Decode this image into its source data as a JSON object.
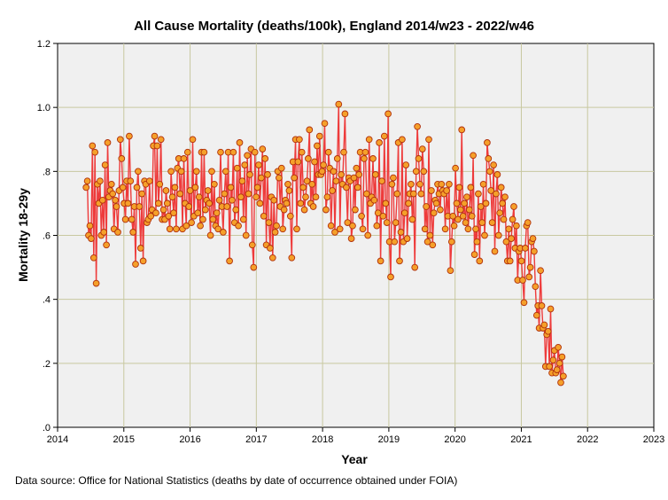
{
  "chart_data": {
    "type": "line",
    "title": "All Cause Mortality (deaths/100k), England 2014/w23 - 2022/w46",
    "xlabel": "Year",
    "ylabel": "Mortality 18-29y",
    "xlim": [
      2014,
      2023
    ],
    "ylim": [
      0.0,
      1.2
    ],
    "x_ticks": [
      2014,
      2015,
      2016,
      2017,
      2018,
      2019,
      2020,
      2021,
      2022,
      2023
    ],
    "y_ticks": [
      0.0,
      0.2,
      0.4,
      0.6,
      0.8,
      1.0,
      1.2
    ],
    "y_tick_labels": [
      ".0",
      ".2",
      ".4",
      ".6",
      ".8",
      "1.0",
      "1.2"
    ],
    "grid": true,
    "series": [
      {
        "name": "Mortality 18-29y",
        "line_color": "#ee3b3b",
        "marker_fill": "#f5a02a",
        "marker_edge": "#b0300c",
        "x_start_year": 2014.43,
        "x_step_years": 0.01916,
        "values": [
          0.75,
          0.77,
          0.6,
          0.63,
          0.59,
          0.88,
          0.53,
          0.86,
          0.45,
          0.76,
          0.7,
          0.77,
          0.6,
          0.71,
          0.61,
          0.82,
          0.57,
          0.89,
          0.72,
          0.74,
          0.76,
          0.73,
          0.62,
          0.71,
          0.69,
          0.61,
          0.74,
          0.9,
          0.84,
          0.75,
          0.7,
          0.65,
          0.77,
          0.7,
          0.91,
          0.77,
          0.65,
          0.61,
          0.69,
          0.51,
          0.75,
          0.8,
          0.69,
          0.56,
          0.73,
          0.52,
          0.77,
          0.76,
          0.64,
          0.65,
          0.77,
          0.66,
          0.68,
          0.88,
          0.91,
          0.67,
          0.88,
          0.7,
          0.76,
          0.9,
          0.65,
          0.68,
          0.65,
          0.74,
          0.7,
          0.66,
          0.62,
          0.8,
          0.72,
          0.67,
          0.75,
          0.62,
          0.81,
          0.84,
          0.73,
          0.8,
          0.62,
          0.84,
          0.7,
          0.63,
          0.86,
          0.69,
          0.74,
          0.64,
          0.9,
          0.66,
          0.75,
          0.8,
          0.67,
          0.72,
          0.63,
          0.86,
          0.65,
          0.86,
          0.68,
          0.71,
          0.74,
          0.7,
          0.6,
          0.8,
          0.65,
          0.76,
          0.63,
          0.67,
          0.62,
          0.71,
          0.86,
          0.69,
          0.61,
          0.73,
          0.8,
          0.69,
          0.86,
          0.52,
          0.75,
          0.71,
          0.86,
          0.64,
          0.68,
          0.81,
          0.63,
          0.89,
          0.72,
          0.77,
          0.65,
          0.82,
          0.6,
          0.85,
          0.73,
          0.79,
          0.87,
          0.57,
          0.5,
          0.86,
          0.72,
          0.75,
          0.82,
          0.7,
          0.78,
          0.87,
          0.66,
          0.84,
          0.57,
          0.79,
          0.64,
          0.56,
          0.72,
          0.53,
          0.71,
          0.61,
          0.63,
          0.8,
          0.78,
          0.69,
          0.81,
          0.62,
          0.68,
          0.71,
          0.7,
          0.76,
          0.74,
          0.66,
          0.53,
          0.83,
          0.78,
          0.9,
          0.62,
          0.83,
          0.9,
          0.7,
          0.86,
          0.75,
          0.68,
          0.72,
          0.77,
          0.84,
          0.93,
          0.7,
          0.76,
          0.69,
          0.83,
          0.72,
          0.88,
          0.79,
          0.91,
          0.79,
          0.8,
          0.82,
          0.95,
          0.68,
          0.72,
          0.86,
          0.81,
          0.63,
          0.74,
          0.8,
          0.61,
          0.77,
          0.84,
          1.01,
          0.62,
          0.79,
          0.76,
          0.86,
          0.98,
          0.75,
          0.64,
          0.78,
          0.77,
          0.59,
          0.63,
          0.78,
          0.68,
          0.81,
          0.75,
          0.79,
          0.86,
          0.66,
          0.62,
          0.84,
          0.86,
          0.73,
          0.6,
          0.9,
          0.7,
          0.72,
          0.84,
          0.71,
          0.79,
          0.63,
          0.67,
          0.89,
          0.52,
          0.77,
          0.66,
          0.91,
          0.7,
          0.64,
          0.98,
          0.58,
          0.47,
          0.76,
          0.78,
          0.58,
          0.64,
          0.73,
          0.89,
          0.52,
          0.61,
          0.9,
          0.58,
          0.67,
          0.82,
          0.59,
          0.7,
          0.73,
          0.76,
          0.65,
          0.73,
          0.5,
          0.8,
          0.94,
          0.84,
          0.76,
          0.73,
          0.87,
          0.8,
          0.62,
          0.69,
          0.58,
          0.9,
          0.6,
          0.74,
          0.57,
          0.67,
          0.71,
          0.7,
          0.76,
          0.73,
          0.68,
          0.76,
          0.74,
          0.73,
          0.62,
          0.74,
          0.66,
          0.76,
          0.49,
          0.58,
          0.66,
          0.63,
          0.81,
          0.7,
          0.65,
          0.75,
          0.68,
          0.93,
          0.66,
          0.7,
          0.64,
          0.72,
          0.62,
          0.68,
          0.75,
          0.66,
          0.85,
          0.54,
          0.62,
          0.58,
          0.73,
          0.52,
          0.69,
          0.64,
          0.76,
          0.6,
          0.7,
          0.89,
          0.84,
          0.8,
          0.74,
          0.64,
          0.82,
          0.55,
          0.73,
          0.79,
          0.6,
          0.67,
          0.75,
          0.7,
          0.65,
          0.72,
          0.58,
          0.52,
          0.62,
          0.52,
          0.59,
          0.65,
          0.69,
          0.56,
          0.63,
          0.46,
          0.55,
          0.56,
          0.52,
          0.46,
          0.39,
          0.56,
          0.63,
          0.64,
          0.47,
          0.5,
          0.58,
          0.59,
          0.55,
          0.44,
          0.35,
          0.38,
          0.31,
          0.49,
          0.38,
          0.31,
          0.32,
          0.19,
          0.29,
          0.3,
          0.19,
          0.37,
          0.17,
          0.21,
          0.24,
          0.17,
          0.18,
          0.25,
          0.2,
          0.14,
          0.22,
          0.16
        ]
      }
    ],
    "source_note": "Data source: Office for National Statistics (deaths by date of occurrence obtained under FOIA)"
  }
}
